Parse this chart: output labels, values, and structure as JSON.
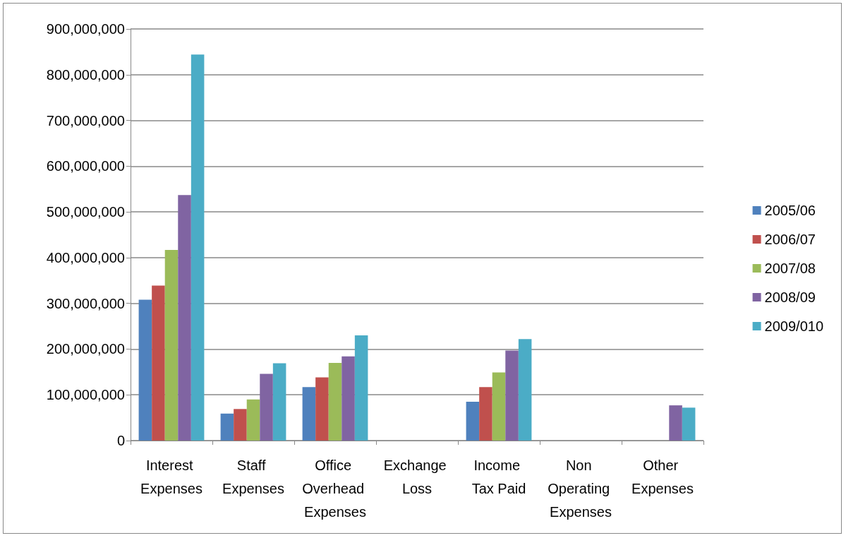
{
  "chart_data": {
    "type": "bar",
    "categories": [
      "Interest Expenses",
      "Staff Expenses",
      "Office Overhead Expenses",
      "Exchange Loss",
      "Income Tax Paid",
      "Non Operating Expenses",
      "Other Expenses"
    ],
    "series": [
      {
        "name": "2005/06",
        "color": "#4f81bd",
        "values": [
          308000000,
          59000000,
          117000000,
          0,
          85000000,
          0,
          0
        ]
      },
      {
        "name": "2006/07",
        "color": "#c0504d",
        "values": [
          339000000,
          69000000,
          138000000,
          0,
          117000000,
          0,
          0
        ]
      },
      {
        "name": "2007/08",
        "color": "#9bbb59",
        "values": [
          417000000,
          90000000,
          170000000,
          0,
          149000000,
          0,
          0
        ]
      },
      {
        "name": "2008/09",
        "color": "#8064a2",
        "values": [
          537000000,
          146000000,
          184000000,
          0,
          197000000,
          0,
          77000000
        ]
      },
      {
        "name": "2009/010",
        "color": "#4bacc6",
        "values": [
          844000000,
          169000000,
          230000000,
          0,
          222000000,
          0,
          72000000
        ]
      }
    ],
    "ylim": [
      0,
      900000000
    ],
    "yticks": [
      0,
      {
        "value": 100000000,
        "label": "100,000,000"
      },
      {
        "value": 200000000,
        "label": "200,000,000"
      },
      {
        "value": 300000000,
        "label": "300,000,000"
      },
      {
        "value": 400000000,
        "label": "400,000,000"
      },
      {
        "value": 500000000,
        "label": "500,000,000"
      },
      {
        "value": 600000000,
        "label": "600,000,000"
      },
      {
        "value": 700000000,
        "label": "700,000,000"
      },
      {
        "value": 800000000,
        "label": "800,000,000"
      },
      {
        "value": 900000000,
        "label": "900,000,000"
      }
    ],
    "grid": "y",
    "legend": "right"
  }
}
